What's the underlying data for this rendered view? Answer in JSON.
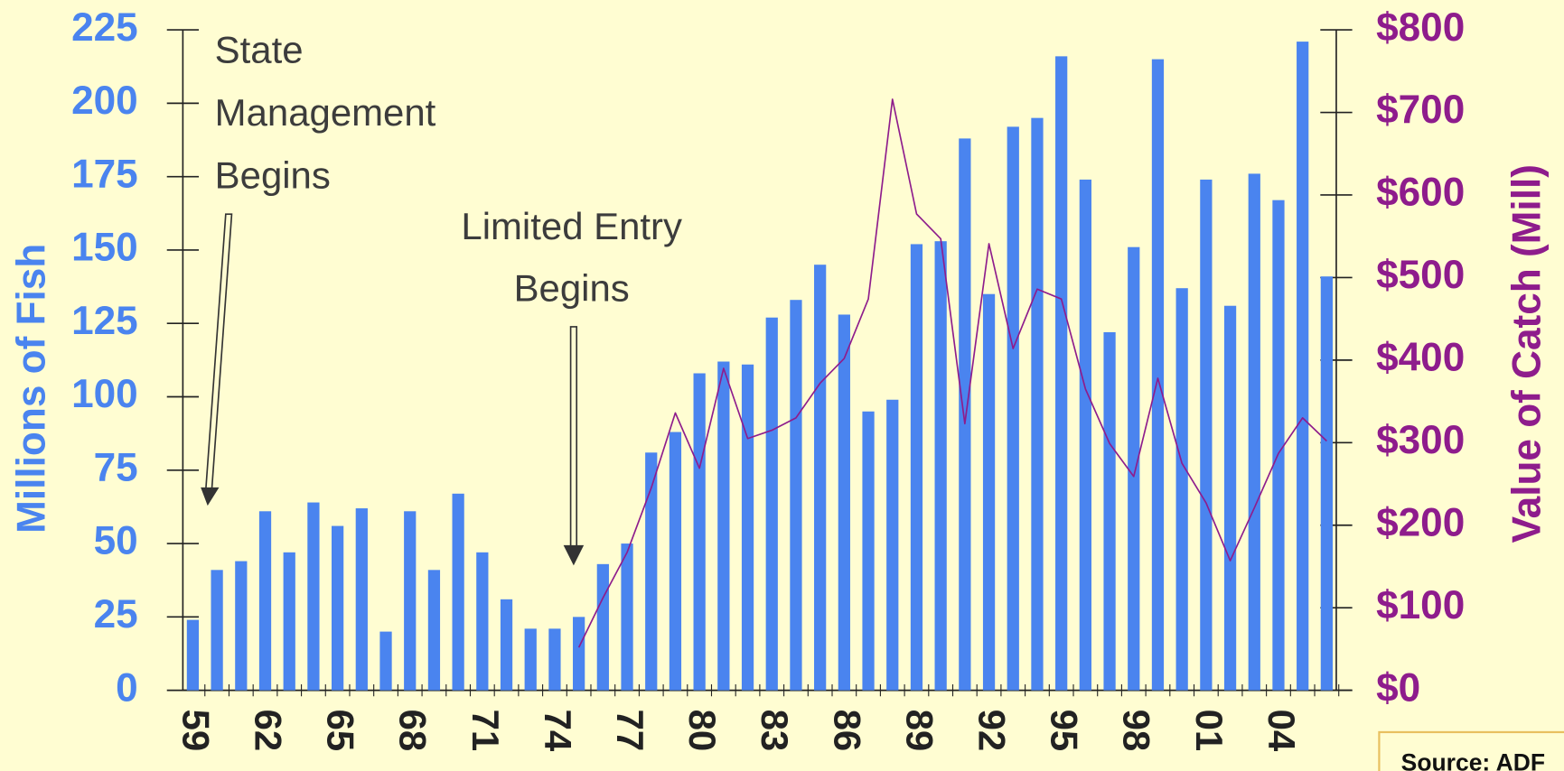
{
  "chart_data": {
    "type": "bar",
    "y_label": "Millions of Fish",
    "y2_label": "Value of Catch (Mill)",
    "source": "Source: ADF",
    "annotations": [
      {
        "lines": [
          "State",
          "Management",
          "Begins"
        ]
      },
      {
        "lines": [
          "Limited Entry",
          "Begins"
        ]
      }
    ],
    "categories": [
      "59",
      null,
      null,
      "62",
      null,
      null,
      "65",
      null,
      null,
      "68",
      null,
      null,
      "71",
      null,
      null,
      "74",
      null,
      null,
      "77",
      null,
      null,
      "80",
      null,
      null,
      "83",
      null,
      null,
      "86",
      null,
      null,
      "89",
      null,
      null,
      "92",
      null,
      null,
      "95",
      null,
      null,
      "98",
      null,
      null,
      "01",
      null,
      null,
      "04",
      null,
      null
    ],
    "series": [
      {
        "type": "bar",
        "color": "#4a84ef",
        "values": [
          24,
          41,
          44,
          61,
          47,
          64,
          56,
          62,
          20,
          61,
          41,
          67,
          47,
          31,
          21,
          21,
          25,
          43,
          50,
          81,
          88,
          108,
          112,
          111,
          127,
          133,
          145,
          128,
          95,
          99,
          152,
          153,
          188,
          135,
          192,
          195,
          216,
          174,
          122,
          151,
          215,
          137,
          174,
          131,
          176,
          167,
          221,
          141
        ]
      },
      {
        "type": "line",
        "axis": "y2",
        "color": "#8e1c8c",
        "values": [
          null,
          null,
          null,
          null,
          null,
          null,
          null,
          null,
          null,
          null,
          null,
          null,
          null,
          null,
          null,
          null,
          52,
          112,
          167,
          245,
          336,
          269,
          390,
          305,
          315,
          330,
          372,
          402,
          474,
          716,
          577,
          547,
          323,
          541,
          414,
          486,
          474,
          365,
          299,
          259,
          378,
          275,
          227,
          157,
          221,
          287,
          330,
          302
        ]
      }
    ],
    "ylim": [
      0,
      225
    ],
    "yticks": [
      0,
      25,
      50,
      75,
      100,
      125,
      150,
      175,
      200,
      225
    ],
    "y2lim": [
      0,
      800
    ],
    "y2ticks": [
      {
        "value": 0,
        "label": "$0"
      },
      {
        "value": 100,
        "label": "$100"
      },
      {
        "value": 200,
        "label": "$200"
      },
      {
        "value": 300,
        "label": "$300"
      },
      {
        "value": 400,
        "label": "$400"
      },
      {
        "value": 500,
        "label": "$500"
      },
      {
        "value": 600,
        "label": "$600"
      },
      {
        "value": 700,
        "label": "$700"
      },
      {
        "value": 800,
        "label": "$800"
      }
    ]
  }
}
